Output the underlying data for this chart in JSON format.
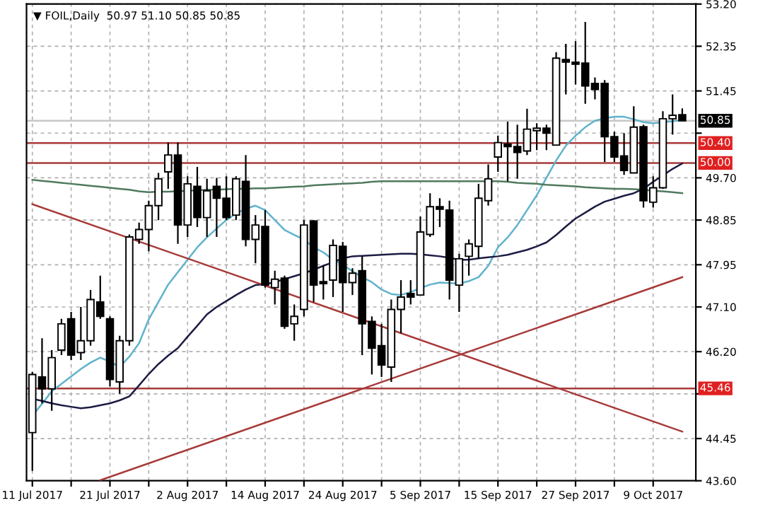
{
  "chart_data": {
    "type": "candlestick",
    "title": "▼ FOIL,Daily  50.97 51.10 50.85 50.85",
    "categories": [
      "11 Jul 2017",
      null,
      null,
      null,
      null,
      null,
      null,
      null,
      "21 Jul 2017",
      null,
      null,
      null,
      null,
      null,
      null,
      null,
      "2 Aug 2017",
      null,
      null,
      null,
      null,
      null,
      null,
      null,
      "14 Aug 2017",
      null,
      null,
      null,
      null,
      null,
      null,
      null,
      "24 Aug 2017",
      null,
      null,
      null,
      null,
      null,
      null,
      null,
      "5 Sep 2017",
      null,
      null,
      null,
      null,
      null,
      null,
      null,
      "15 Sep 2017",
      null,
      null,
      null,
      null,
      null,
      null,
      null,
      "27 Sep 2017",
      null,
      null,
      null,
      null,
      null,
      null,
      null,
      "9 Oct 2017",
      null,
      null,
      null
    ],
    "ohlc": [
      [
        44.57,
        45.79,
        43.8,
        45.74
      ],
      [
        45.69,
        46.47,
        45.16,
        45.45
      ],
      [
        45.45,
        46.23,
        45.01,
        46.08
      ],
      [
        46.23,
        46.86,
        46.13,
        46.76
      ],
      [
        46.86,
        47.0,
        46.03,
        46.13
      ],
      [
        46.18,
        47.1,
        46.03,
        46.42
      ],
      [
        46.42,
        47.44,
        46.32,
        47.25
      ],
      [
        47.2,
        47.73,
        46.86,
        46.91
      ],
      [
        46.86,
        46.91,
        45.5,
        45.64
      ],
      [
        45.59,
        46.52,
        45.35,
        46.42
      ],
      [
        46.42,
        48.56,
        46.32,
        48.51
      ],
      [
        48.46,
        48.8,
        48.37,
        48.66
      ],
      [
        48.66,
        49.24,
        48.22,
        49.14
      ],
      [
        49.14,
        49.8,
        48.85,
        49.68
      ],
      [
        49.82,
        50.41,
        49.48,
        50.16
      ],
      [
        50.16,
        50.41,
        48.37,
        48.75
      ],
      [
        48.75,
        49.73,
        48.51,
        49.58
      ],
      [
        49.53,
        49.92,
        48.71,
        48.9
      ],
      [
        48.9,
        49.68,
        48.51,
        49.44
      ],
      [
        49.53,
        49.7,
        48.51,
        49.29
      ],
      [
        49.29,
        49.73,
        48.85,
        48.9
      ],
      [
        48.95,
        49.73,
        48.85,
        49.68
      ],
      [
        49.63,
        50.16,
        48.32,
        48.46
      ],
      [
        48.46,
        48.95,
        47.98,
        48.75
      ],
      [
        48.72,
        49.05,
        47.49,
        47.54
      ],
      [
        47.49,
        47.83,
        47.15,
        47.66
      ],
      [
        47.68,
        47.73,
        46.66,
        46.71
      ],
      [
        46.76,
        47.15,
        46.42,
        46.91
      ],
      [
        47.05,
        48.85,
        46.91,
        48.75
      ],
      [
        48.83,
        48.85,
        47.2,
        47.54
      ],
      [
        47.61,
        47.93,
        47.25,
        47.57
      ],
      [
        47.64,
        48.46,
        47.3,
        48.34
      ],
      [
        48.32,
        48.41,
        47.0,
        47.59
      ],
      [
        47.59,
        47.88,
        47.34,
        47.78
      ],
      [
        47.83,
        48.12,
        46.13,
        46.76
      ],
      [
        46.81,
        46.91,
        45.74,
        46.27
      ],
      [
        46.32,
        46.76,
        45.69,
        45.93
      ],
      [
        45.89,
        47.25,
        45.59,
        47.05
      ],
      [
        47.05,
        47.64,
        46.57,
        47.3
      ],
      [
        47.37,
        47.64,
        47.15,
        47.3
      ],
      [
        47.34,
        48.92,
        47.34,
        48.61
      ],
      [
        48.56,
        49.39,
        48.51,
        49.12
      ],
      [
        49.12,
        49.29,
        48.71,
        49.07
      ],
      [
        49.05,
        49.24,
        47.25,
        47.64
      ],
      [
        47.54,
        48.17,
        47.0,
        48.07
      ],
      [
        48.12,
        48.46,
        47.73,
        48.37
      ],
      [
        48.32,
        49.58,
        48.07,
        49.29
      ],
      [
        49.24,
        49.97,
        49.14,
        49.68
      ],
      [
        50.12,
        50.55,
        49.82,
        50.41
      ],
      [
        50.38,
        50.83,
        49.63,
        50.33
      ],
      [
        50.33,
        50.77,
        49.68,
        50.21
      ],
      [
        50.24,
        51.09,
        50.16,
        50.68
      ],
      [
        50.65,
        50.8,
        50.26,
        50.7
      ],
      [
        50.7,
        50.77,
        50.26,
        50.6
      ],
      [
        50.36,
        52.23,
        50.36,
        52.11
      ],
      [
        52.08,
        52.4,
        51.38,
        52.03
      ],
      [
        52.03,
        52.45,
        51.58,
        51.99
      ],
      [
        52.01,
        52.84,
        51.19,
        51.55
      ],
      [
        51.6,
        51.72,
        51.28,
        51.48
      ],
      [
        51.6,
        51.67,
        50.02,
        50.53
      ],
      [
        50.53,
        50.63,
        50.02,
        50.12
      ],
      [
        50.14,
        50.6,
        49.76,
        49.85
      ],
      [
        49.8,
        51.14,
        49.8,
        50.72
      ],
      [
        50.73,
        50.77,
        49.1,
        49.24
      ],
      [
        49.21,
        49.73,
        49.1,
        49.5
      ],
      [
        49.5,
        51.04,
        49.48,
        50.89
      ],
      [
        50.89,
        51.38,
        50.57,
        50.96
      ],
      [
        50.97,
        51.1,
        50.85,
        50.85
      ]
    ],
    "series": [
      {
        "type": "line",
        "color": "#5fb3cc",
        "values": [
          44.91,
          45.15,
          45.4,
          45.55,
          45.7,
          45.85,
          45.98,
          46.08,
          46.0,
          45.89,
          46.1,
          46.37,
          46.85,
          47.2,
          47.55,
          47.8,
          48.05,
          48.3,
          48.5,
          48.68,
          48.85,
          48.98,
          49.08,
          49.14,
          49.05,
          48.85,
          48.65,
          48.55,
          48.46,
          48.3,
          48.2,
          48.05,
          47.95,
          47.82,
          47.7,
          47.6,
          47.45,
          47.36,
          47.34,
          47.4,
          47.48,
          47.55,
          47.59,
          47.58,
          47.57,
          47.62,
          47.7,
          47.93,
          48.3,
          48.5,
          48.75,
          49.05,
          49.35,
          49.7,
          50.05,
          50.35,
          50.55,
          50.72,
          50.85,
          50.9,
          50.93,
          50.93,
          50.88,
          50.82,
          50.8,
          50.82,
          50.84,
          50.87
        ]
      },
      {
        "type": "line",
        "color": "#1c1c44",
        "values": [
          45.25,
          45.21,
          45.16,
          45.12,
          45.09,
          45.06,
          45.08,
          45.12,
          45.16,
          45.22,
          45.3,
          45.52,
          45.75,
          45.95,
          46.12,
          46.27,
          46.5,
          46.72,
          46.95,
          47.1,
          47.22,
          47.34,
          47.45,
          47.54,
          47.56,
          47.6,
          47.66,
          47.72,
          47.78,
          47.85,
          47.93,
          48.0,
          48.08,
          48.12,
          48.13,
          48.14,
          48.15,
          48.16,
          48.17,
          48.17,
          48.16,
          48.14,
          48.12,
          48.09,
          48.05,
          48.05,
          48.08,
          48.1,
          48.12,
          48.15,
          48.2,
          48.25,
          48.32,
          48.4,
          48.55,
          48.72,
          48.88,
          49.0,
          49.12,
          49.22,
          49.28,
          49.34,
          49.39,
          49.48,
          49.62,
          49.75,
          49.88,
          49.99
        ]
      },
      {
        "type": "line",
        "color": "#4f7a5e",
        "values": [
          49.66,
          49.64,
          49.62,
          49.6,
          49.58,
          49.56,
          49.54,
          49.52,
          49.5,
          49.48,
          49.46,
          49.43,
          49.41,
          49.42,
          49.42,
          49.43,
          49.44,
          49.45,
          49.46,
          49.46,
          49.47,
          49.48,
          49.48,
          49.49,
          49.49,
          49.5,
          49.51,
          49.52,
          49.53,
          49.55,
          49.56,
          49.57,
          49.58,
          49.59,
          49.6,
          49.62,
          49.63,
          49.63,
          49.63,
          49.63,
          49.63,
          49.63,
          49.63,
          49.63,
          49.63,
          49.63,
          49.63,
          49.63,
          49.63,
          49.62,
          49.6,
          49.59,
          49.58,
          49.56,
          49.55,
          49.54,
          49.53,
          49.51,
          49.5,
          49.49,
          49.48,
          49.48,
          49.47,
          49.46,
          49.44,
          49.43,
          49.41,
          49.39
        ]
      },
      {
        "type": "line",
        "color": "#a83a3a",
        "values": [
          49.17,
          null,
          null,
          null,
          null,
          null,
          null,
          null,
          null,
          null,
          null,
          null,
          null,
          null,
          null,
          null,
          null,
          null,
          null,
          null,
          null,
          null,
          null,
          null,
          null,
          null,
          null,
          null,
          null,
          null,
          null,
          null,
          null,
          null,
          null,
          null,
          null,
          null,
          null,
          null,
          null,
          null,
          null,
          null,
          null,
          null,
          null,
          null,
          null,
          null,
          null,
          null,
          null,
          null,
          null,
          null,
          null,
          null,
          null,
          null,
          null,
          null,
          null,
          null,
          null,
          null,
          null,
          44.59
        ]
      },
      {
        "type": "line",
        "color": "#a83a3a",
        "values": [
          null,
          null,
          null,
          null,
          null,
          null,
          null,
          43.61,
          null,
          null,
          null,
          null,
          null,
          null,
          null,
          null,
          null,
          null,
          null,
          null,
          null,
          null,
          null,
          null,
          null,
          null,
          null,
          null,
          null,
          null,
          null,
          null,
          null,
          null,
          null,
          null,
          null,
          null,
          null,
          null,
          null,
          null,
          null,
          null,
          null,
          null,
          null,
          null,
          null,
          null,
          null,
          null,
          null,
          null,
          null,
          null,
          null,
          null,
          null,
          null,
          null,
          null,
          null,
          null,
          null,
          null,
          null,
          47.7
        ]
      }
    ],
    "ref_lines": [
      {
        "axis": "y",
        "value": 50.85,
        "label": "50.85",
        "color": "#c8c8c8"
      },
      {
        "axis": "y",
        "value": 50.4,
        "label": "50.40",
        "color": "#a83a3a"
      },
      {
        "axis": "y",
        "value": 50.0,
        "label": "50.00",
        "color": "#a83a3a"
      },
      {
        "axis": "y",
        "value": 45.46,
        "label": "45.46",
        "color": "#a83a3a"
      }
    ],
    "ylim": [
      43.6,
      53.2
    ],
    "yticks": [
      {
        "value": 43.6,
        "label": "43.60"
      },
      44.45,
      {
        "value": 45.35,
        "label": null
      },
      {
        "value": 46.2,
        "label": "46.20"
      },
      {
        "value": 47.1,
        "label": "47.10"
      },
      47.95,
      48.85,
      {
        "value": 49.7,
        "label": "49.70"
      },
      {
        "value": 50.6,
        "label": null
      },
      51.45,
      52.35,
      {
        "value": 53.2,
        "label": "53.20"
      }
    ],
    "grid": true,
    "legend": false
  }
}
